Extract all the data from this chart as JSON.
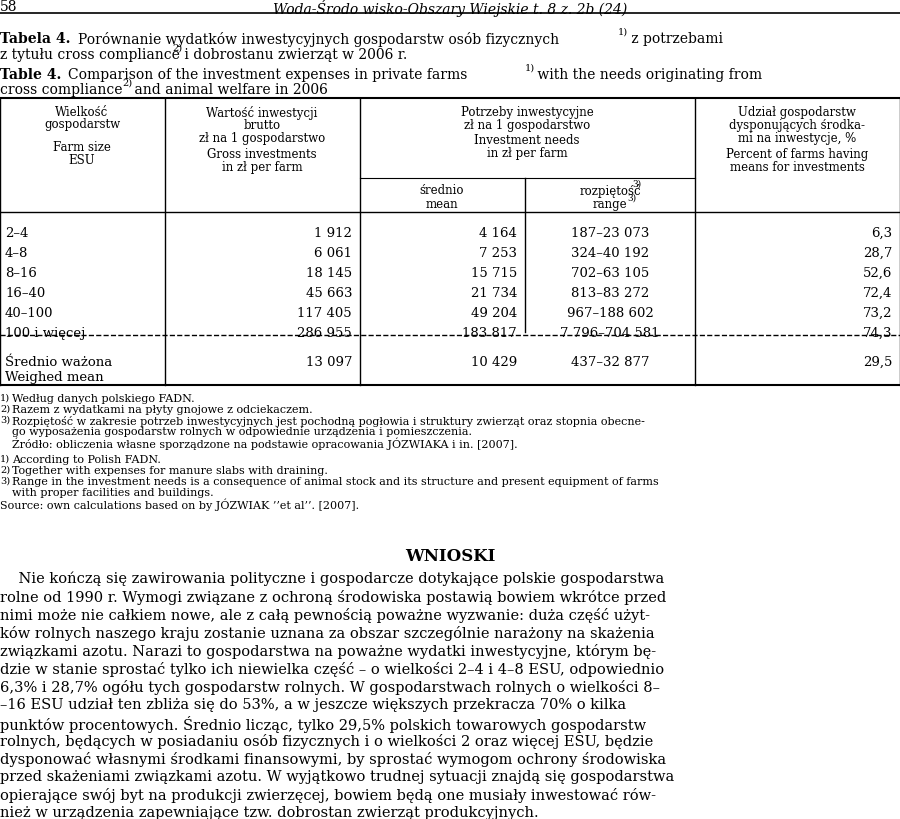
{
  "page_number": "58",
  "rows": [
    {
      "size": "2–4",
      "gross": "1 912",
      "mean": "4 164",
      "range": "187–23 073",
      "percent": "6,3"
    },
    {
      "size": "4–8",
      "gross": "6 061",
      "mean": "7 253",
      "range": "324–40 192",
      "percent": "28,7"
    },
    {
      "size": "8–16",
      "gross": "18 145",
      "mean": "15 715",
      "range": "702–63 105",
      "percent": "52,6"
    },
    {
      "size": "16–40",
      "gross": "45 663",
      "mean": "21 734",
      "range": "813–83 272",
      "percent": "72,4"
    },
    {
      "size": "40–100",
      "gross": "117 405",
      "mean": "49 204",
      "range": "967–188 602",
      "percent": "73,2"
    },
    {
      "size": "100 i więcej",
      "gross": "286 955",
      "mean": "183 817",
      "range": "7 796–704 581",
      "percent": "74,3"
    }
  ],
  "footer_row_pl": "Średnio ważona",
  "footer_row_en": "Weighed mean",
  "footer_gross": "13 097",
  "footer_mean": "10 429",
  "footer_range": "437–32 877",
  "footer_percent": "29,5"
}
